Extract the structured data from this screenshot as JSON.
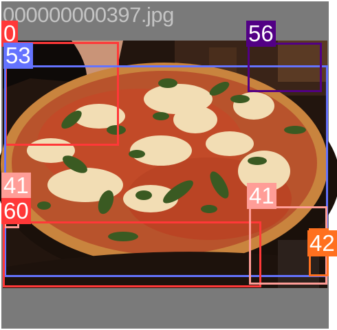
{
  "image": {
    "filename": "000000000397.jpg",
    "subject": "pizza-photo"
  },
  "detections": [
    {
      "id": "0",
      "label": "0",
      "color": "#ff3838"
    },
    {
      "id": "53",
      "label": "53",
      "color": "#6473ff"
    },
    {
      "id": "56",
      "label": "56",
      "color": "#520085"
    },
    {
      "id": "41a",
      "label": "41",
      "color": "#ff9d97"
    },
    {
      "id": "60",
      "label": "60",
      "color": "#ff3838"
    },
    {
      "id": "41b",
      "label": "41",
      "color": "#ff9d97"
    },
    {
      "id": "42",
      "label": "42",
      "color": "#ff701f"
    }
  ]
}
